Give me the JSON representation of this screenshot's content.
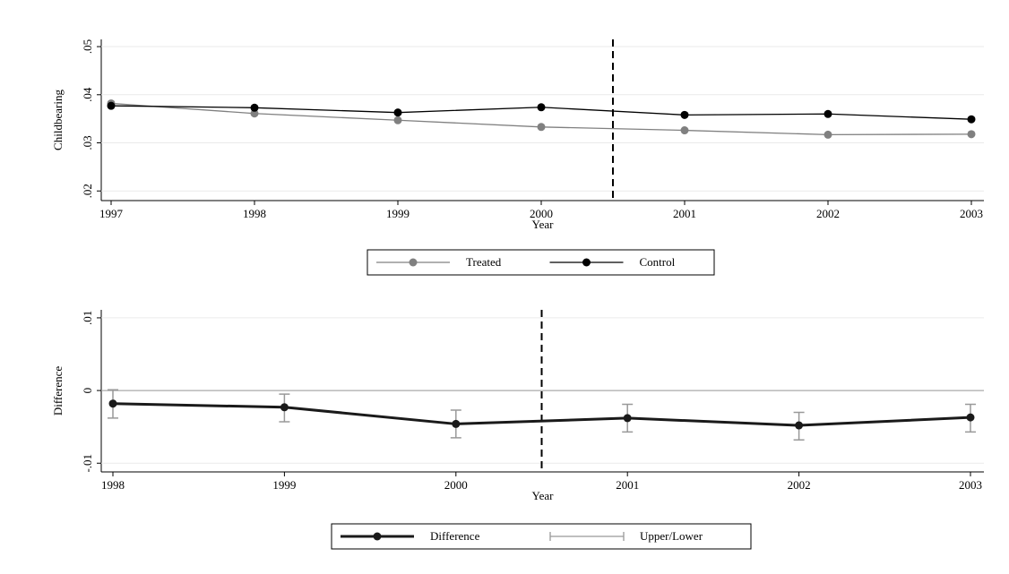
{
  "chart_data": [
    {
      "type": "line",
      "x_label": "Year",
      "y_label": "Childbearing",
      "x": [
        1997,
        1998,
        1999,
        2000,
        2001,
        2002,
        2003
      ],
      "xlim": [
        1997,
        2003
      ],
      "xticks": [
        1997,
        1998,
        1999,
        2000,
        2001,
        2002,
        2003
      ],
      "ylim": [
        0.018,
        0.0515
      ],
      "yticks": [
        {
          "value": 0.02,
          "label": ".02"
        },
        {
          "value": 0.03,
          "label": ".03"
        },
        {
          "value": 0.04,
          "label": ".04"
        },
        {
          "value": 0.05,
          "label": ".05"
        }
      ],
      "grid": true,
      "vline": 2000.5,
      "series": [
        {
          "name": "Treated",
          "color": "#808080",
          "values": [
            0.0382,
            0.0361,
            0.0347,
            0.0333,
            0.0326,
            0.0317,
            0.0318
          ]
        },
        {
          "name": "Control",
          "color": "#000000",
          "values": [
            0.0377,
            0.0373,
            0.0363,
            0.0374,
            0.0358,
            0.036,
            0.0349
          ]
        }
      ]
    },
    {
      "type": "line",
      "x_label": "Year",
      "y_label": "Difference",
      "x": [
        1998,
        1999,
        2000,
        2001,
        2002,
        2003
      ],
      "xlim": [
        1998,
        2003
      ],
      "xticks": [
        1998,
        1999,
        2000,
        2001,
        2002,
        2003
      ],
      "ylim": [
        -0.0112,
        0.0111
      ],
      "yticks": [
        {
          "value": -0.01,
          "label": "-.01"
        },
        0,
        {
          "value": 0.01,
          "label": ".01"
        }
      ],
      "grid": true,
      "vline": 2000.5,
      "hline": 0,
      "series": [
        {
          "name": "Difference",
          "color": "#1a1a1a",
          "values": [
            -0.0018,
            -0.0023,
            -0.0046,
            -0.0038,
            -0.0048,
            -0.0037
          ]
        },
        {
          "name": "Upper/Lower",
          "color": "#999999",
          "upper": [
            0.0001,
            -0.0005,
            -0.0027,
            -0.0019,
            -0.003,
            -0.0019
          ],
          "lower": [
            -0.0038,
            -0.0043,
            -0.0065,
            -0.0057,
            -0.0068,
            -0.0057
          ]
        }
      ]
    }
  ]
}
